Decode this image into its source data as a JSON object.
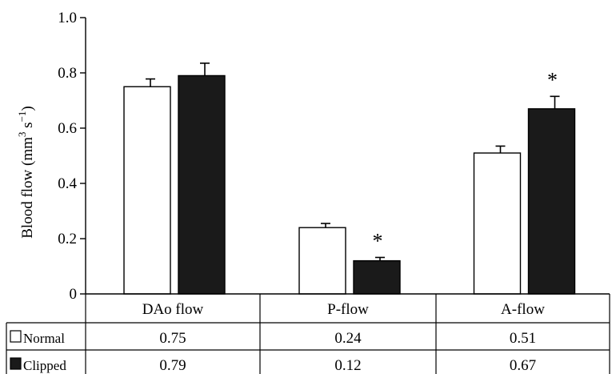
{
  "chart_data": {
    "type": "bar",
    "ylabel_main": "Blood flow (mm",
    "ylabel_sup1": "3",
    "ylabel_mid": " s",
    "ylabel_sup2": "−1",
    "ylabel_end": ")",
    "ylim": [
      0,
      1.0
    ],
    "yticks": [
      0,
      0.2,
      0.4,
      0.6,
      0.8,
      1.0
    ],
    "ytick_labels": [
      "0",
      "0.2",
      "0.4",
      "0.6",
      "0.8",
      "1.0"
    ],
    "categories": [
      "DAo flow",
      "P-flow",
      "A-flow"
    ],
    "series": [
      {
        "name": "Normal",
        "values": [
          0.75,
          0.24,
          0.51
        ],
        "errors": [
          0.028,
          0.015,
          0.025
        ],
        "color": "#ffffff",
        "value_labels": [
          "0.75",
          "0.24",
          "0.51"
        ]
      },
      {
        "name": "Clipped",
        "values": [
          0.79,
          0.12,
          0.67
        ],
        "errors": [
          0.045,
          0.012,
          0.045
        ],
        "color": "#1a1a1a",
        "value_labels": [
          "0.79",
          "0.12",
          "0.67"
        ]
      }
    ],
    "significance": [
      "",
      "*",
      "*"
    ],
    "grid": false,
    "legend": "table-rows"
  }
}
